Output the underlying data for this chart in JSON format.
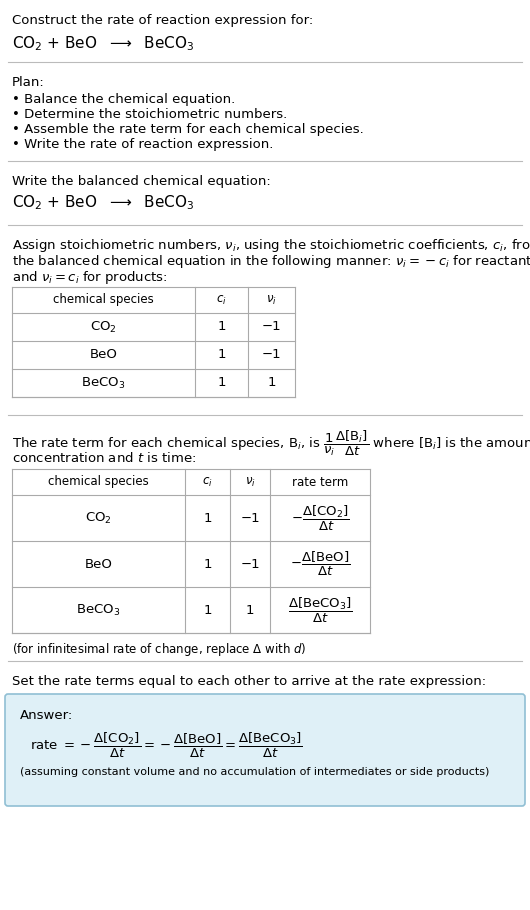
{
  "bg_color": "#ffffff",
  "text_color": "#000000",
  "title_line1": "Construct the rate of reaction expression for:",
  "plan_header": "Plan:",
  "plan_bullets": [
    "• Balance the chemical equation.",
    "• Determine the stoichiometric numbers.",
    "• Assemble the rate term for each chemical species.",
    "• Write the rate of reaction expression."
  ],
  "balanced_header": "Write the balanced chemical equation:",
  "stoich_intro_1": "Assign stoichiometric numbers, $\\nu_i$, using the stoichiometric coefficients, $c_i$, from",
  "stoich_intro_2": "the balanced chemical equation in the following manner: $\\nu_i = -c_i$ for reactants",
  "stoich_intro_3": "and $\\nu_i = c_i$ for products:",
  "table1_headers": [
    "chemical species",
    "$c_i$",
    "$\\nu_i$"
  ],
  "table1_rows": [
    [
      "$\\mathrm{CO_2}$",
      "1",
      "−1"
    ],
    [
      "BeO",
      "1",
      "−1"
    ],
    [
      "$\\mathrm{BeCO_3}$",
      "1",
      "1"
    ]
  ],
  "rate_intro_1": "The rate term for each chemical species, $\\mathrm{B}_i$, is $\\dfrac{1}{\\nu_i}\\dfrac{\\Delta[\\mathrm{B}_i]}{\\Delta t}$ where $[\\mathrm{B}_i]$ is the amount",
  "rate_intro_2": "concentration and $t$ is time:",
  "table2_headers": [
    "chemical species",
    "$c_i$",
    "$\\nu_i$",
    "rate term"
  ],
  "table2_rows": [
    [
      "$\\mathrm{CO_2}$",
      "1",
      "−1",
      "$-\\dfrac{\\Delta[\\mathrm{CO_2}]}{\\Delta t}$"
    ],
    [
      "BeO",
      "1",
      "−1",
      "$-\\dfrac{\\Delta[\\mathrm{BeO}]}{\\Delta t}$"
    ],
    [
      "$\\mathrm{BeCO_3}$",
      "1",
      "1",
      "$\\dfrac{\\Delta[\\mathrm{BeCO_3}]}{\\Delta t}$"
    ]
  ],
  "infinitesimal_note": "(for infinitesimal rate of change, replace Δ with $d$)",
  "set_rate_text": "Set the rate terms equal to each other to arrive at the rate expression:",
  "answer_label": "Answer:",
  "answer_box_color": "#dff0f7",
  "answer_border_color": "#90bfd4",
  "answer_note": "(assuming constant volume and no accumulation of intermediates or side products)"
}
